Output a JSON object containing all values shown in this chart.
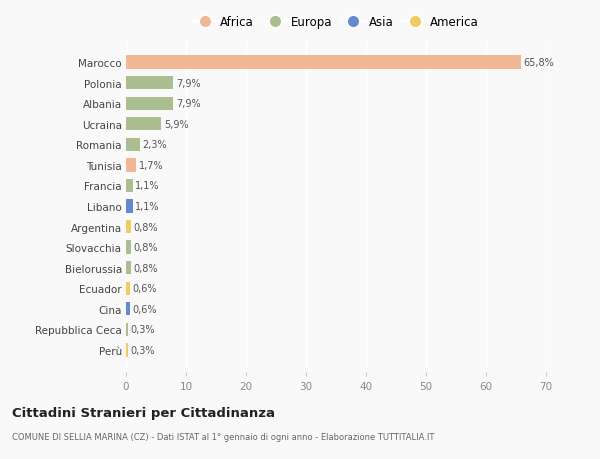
{
  "countries": [
    "Marocco",
    "Polonia",
    "Albania",
    "Ucraina",
    "Romania",
    "Tunisia",
    "Francia",
    "Libano",
    "Argentina",
    "Slovacchia",
    "Bielorussia",
    "Ecuador",
    "Cina",
    "Repubblica Ceca",
    "Perù"
  ],
  "values": [
    65.8,
    7.9,
    7.9,
    5.9,
    2.3,
    1.7,
    1.1,
    1.1,
    0.8,
    0.8,
    0.8,
    0.6,
    0.6,
    0.3,
    0.3
  ],
  "labels": [
    "65,8%",
    "7,9%",
    "7,9%",
    "5,9%",
    "2,3%",
    "1,7%",
    "1,1%",
    "1,1%",
    "0,8%",
    "0,8%",
    "0,8%",
    "0,6%",
    "0,6%",
    "0,3%",
    "0,3%"
  ],
  "continents": [
    "Africa",
    "Europa",
    "Europa",
    "Europa",
    "Europa",
    "Africa",
    "Europa",
    "Asia",
    "America",
    "Europa",
    "Europa",
    "America",
    "Asia",
    "Europa",
    "America"
  ],
  "colors": {
    "Africa": "#F2B896",
    "Europa": "#ABBE90",
    "Asia": "#6688CC",
    "America": "#F0CC60"
  },
  "legend_order": [
    "Africa",
    "Europa",
    "Asia",
    "America"
  ],
  "title": "Cittadini Stranieri per Cittadinanza",
  "subtitle": "COMUNE DI SELLIA MARINA (CZ) - Dati ISTAT al 1° gennaio di ogni anno - Elaborazione TUTTITALIA.IT",
  "xlim": [
    0,
    70
  ],
  "xticks": [
    0,
    10,
    20,
    30,
    40,
    50,
    60,
    70
  ],
  "background_color": "#f9f9f9",
  "bar_height": 0.65
}
